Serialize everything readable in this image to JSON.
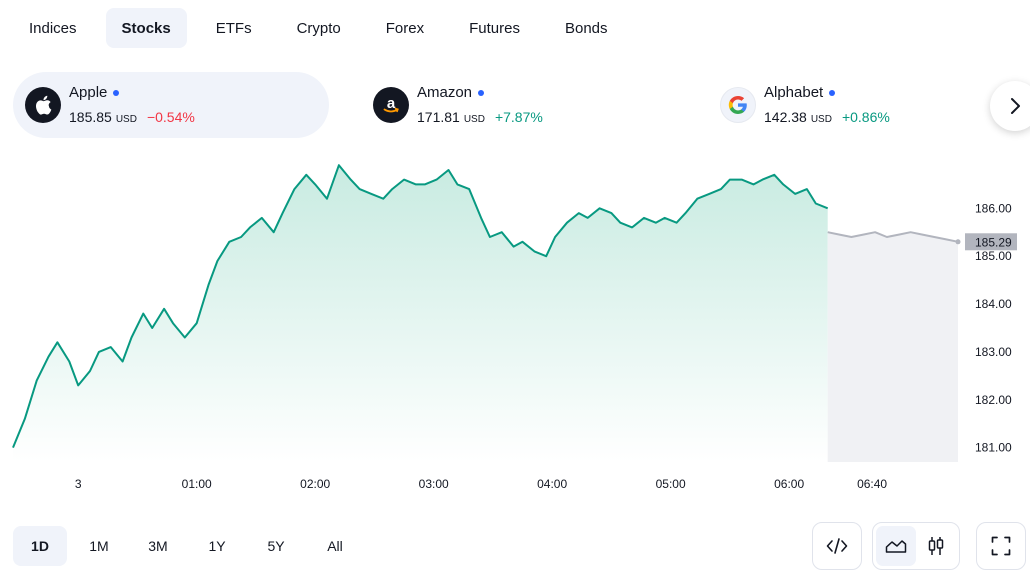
{
  "tabs": [
    {
      "label": "Indices"
    },
    {
      "label": "Stocks"
    },
    {
      "label": "ETFs"
    },
    {
      "label": "Crypto"
    },
    {
      "label": "Forex"
    },
    {
      "label": "Futures"
    },
    {
      "label": "Bonds"
    }
  ],
  "active_tab": "Stocks",
  "symbols": [
    {
      "name": "Apple",
      "price": "185.85",
      "currency": "USD",
      "change": "−0.54%",
      "direction": "negative",
      "logo": "apple-logo-icon"
    },
    {
      "name": "Amazon",
      "price": "171.81",
      "currency": "USD",
      "change": "+7.87%",
      "direction": "positive",
      "logo": "amazon-logo-icon"
    },
    {
      "name": "Alphabet",
      "price": "142.38",
      "currency": "USD",
      "change": "+0.86%",
      "direction": "positive",
      "logo": "google-logo-icon"
    }
  ],
  "colors": {
    "line": "#089981",
    "area_top": "#c8ebe1",
    "extended_line": "#b2b5be",
    "extended_area": "#f0f1f4",
    "price_label_bg": "#b2b5be",
    "negative": "#f23645",
    "positive": "#089981",
    "live_dot": "#2962ff"
  },
  "chart_data": {
    "type": "area",
    "x_ticks": [
      "3",
      "01:00",
      "02:00",
      "03:00",
      "04:00",
      "05:00",
      "06:00",
      "06:40"
    ],
    "y_ticks": [
      "186.00",
      "185.00",
      "184.00",
      "183.00",
      "182.00",
      "181.00"
    ],
    "last_price_label": "185.29",
    "ylim": [
      180.7,
      186.8
    ],
    "series": [
      {
        "segment": "regular",
        "points": [
          [
            0,
            181.0
          ],
          [
            4,
            181.6
          ],
          [
            8,
            182.4
          ],
          [
            12,
            182.9
          ],
          [
            15,
            183.2
          ],
          [
            19,
            182.8
          ],
          [
            22,
            182.3
          ],
          [
            26,
            182.6
          ],
          [
            29,
            183.0
          ],
          [
            33,
            183.1
          ],
          [
            37,
            182.8
          ],
          [
            40,
            183.3
          ],
          [
            44,
            183.8
          ],
          [
            47,
            183.5
          ],
          [
            51,
            183.9
          ],
          [
            54,
            183.6
          ],
          [
            58,
            183.3
          ],
          [
            62,
            183.6
          ],
          [
            66,
            184.4
          ],
          [
            69,
            184.9
          ],
          [
            73,
            185.3
          ],
          [
            77,
            185.4
          ],
          [
            80,
            185.6
          ],
          [
            84,
            185.8
          ],
          [
            88,
            185.5
          ],
          [
            91,
            185.9
          ],
          [
            95,
            186.4
          ],
          [
            99,
            186.7
          ],
          [
            102,
            186.5
          ],
          [
            106,
            186.2
          ],
          [
            110,
            186.9
          ],
          [
            114,
            186.6
          ],
          [
            117,
            186.4
          ],
          [
            121,
            186.3
          ],
          [
            125,
            186.2
          ],
          [
            128,
            186.4
          ],
          [
            132,
            186.6
          ],
          [
            136,
            186.5
          ],
          [
            139,
            186.5
          ],
          [
            143,
            186.6
          ],
          [
            147,
            186.8
          ],
          [
            150,
            186.5
          ],
          [
            154,
            186.4
          ],
          [
            158,
            185.8
          ],
          [
            161,
            185.4
          ],
          [
            165,
            185.5
          ],
          [
            169,
            185.2
          ],
          [
            172,
            185.3
          ],
          [
            176,
            185.1
          ],
          [
            180,
            185.0
          ],
          [
            183,
            185.4
          ],
          [
            187,
            185.7
          ],
          [
            191,
            185.9
          ],
          [
            194,
            185.8
          ],
          [
            198,
            186.0
          ],
          [
            202,
            185.9
          ],
          [
            205,
            185.7
          ],
          [
            209,
            185.6
          ],
          [
            213,
            185.8
          ],
          [
            217,
            185.7
          ],
          [
            220,
            185.8
          ],
          [
            224,
            185.7
          ],
          [
            227,
            185.9
          ],
          [
            231,
            186.2
          ],
          [
            235,
            186.3
          ],
          [
            239,
            186.4
          ],
          [
            242,
            186.6
          ],
          [
            246,
            186.6
          ],
          [
            250,
            186.5
          ],
          [
            253,
            186.6
          ],
          [
            257,
            186.7
          ],
          [
            260,
            186.5
          ],
          [
            264,
            186.3
          ],
          [
            268,
            186.4
          ],
          [
            271,
            186.1
          ],
          [
            275,
            186.0
          ]
        ]
      },
      {
        "segment": "extended",
        "points": [
          [
            275,
            185.5
          ],
          [
            279,
            185.45
          ],
          [
            283,
            185.4
          ],
          [
            287,
            185.45
          ],
          [
            291,
            185.5
          ],
          [
            295,
            185.4
          ],
          [
            299,
            185.45
          ],
          [
            303,
            185.5
          ],
          [
            307,
            185.45
          ],
          [
            311,
            185.4
          ],
          [
            315,
            185.35
          ],
          [
            319,
            185.3
          ]
        ]
      }
    ]
  },
  "ranges": [
    {
      "label": "1D"
    },
    {
      "label": "1M"
    },
    {
      "label": "3M"
    },
    {
      "label": "1Y"
    },
    {
      "label": "5Y"
    },
    {
      "label": "All"
    }
  ],
  "active_range": "1D",
  "tools": {
    "embed": "code-icon",
    "area_chart": "area-chart-icon",
    "candles": "candlestick-icon",
    "fullscreen": "fullscreen-icon"
  }
}
